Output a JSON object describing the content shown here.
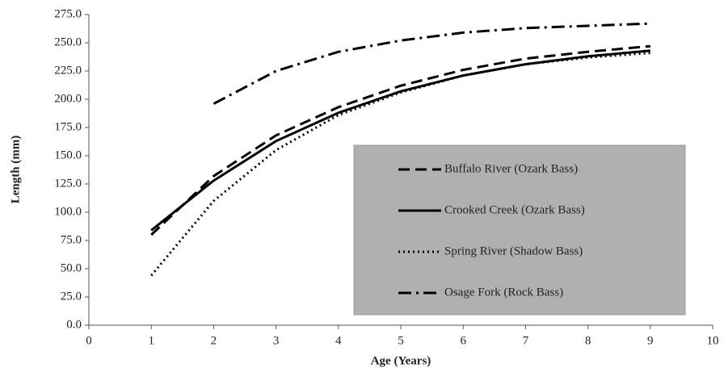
{
  "chart_data": {
    "type": "line",
    "x_label": "Age (Years)",
    "y_label": "Length (mm)",
    "x": [
      1,
      2,
      3,
      4,
      5,
      6,
      7,
      8,
      9
    ],
    "series": [
      {
        "name": "Buffalo River (Ozark Bass)",
        "color": "#000000",
        "style": "dashed",
        "values": [
          80,
          132,
          168,
          193,
          212,
          226,
          236,
          242,
          247
        ]
      },
      {
        "name": "Crooked Creek (Ozark Bass)",
        "color": "#000000",
        "style": "solid",
        "values": [
          84,
          128,
          163,
          188,
          207,
          221,
          231,
          238,
          243
        ]
      },
      {
        "name": "Spring River (Shadow Bass)",
        "color": "#000000",
        "style": "dotted",
        "values": [
          44,
          110,
          155,
          186,
          206,
          221,
          231,
          237,
          241
        ]
      },
      {
        "name": "Osage Fork (Rock Bass)",
        "color": "#000000",
        "style": "dashdot",
        "values": [
          null,
          196,
          225,
          242,
          252,
          259,
          263,
          265,
          267
        ]
      }
    ],
    "xlim": [
      0,
      10
    ],
    "xticks": [
      0,
      1,
      2,
      3,
      4,
      5,
      6,
      7,
      8,
      9,
      10
    ],
    "ylim": [
      0,
      275
    ],
    "yticks": [
      {
        "value": 0,
        "label": "0.0"
      },
      {
        "value": 25,
        "label": "25.0"
      },
      {
        "value": 50,
        "label": "50.0"
      },
      {
        "value": 75,
        "label": "75.0"
      },
      {
        "value": 100,
        "label": "100.0"
      },
      {
        "value": 125,
        "label": "125.0"
      },
      {
        "value": 150,
        "label": "150.0"
      },
      {
        "value": 175,
        "label": "175.0"
      },
      {
        "value": 200,
        "label": "200.0"
      },
      {
        "value": 225,
        "label": "225.0"
      },
      {
        "value": 250,
        "label": "250.0"
      },
      {
        "value": 275,
        "label": "275.0"
      }
    ],
    "legend": "lower right",
    "legend_background": "#b0b0b0"
  }
}
